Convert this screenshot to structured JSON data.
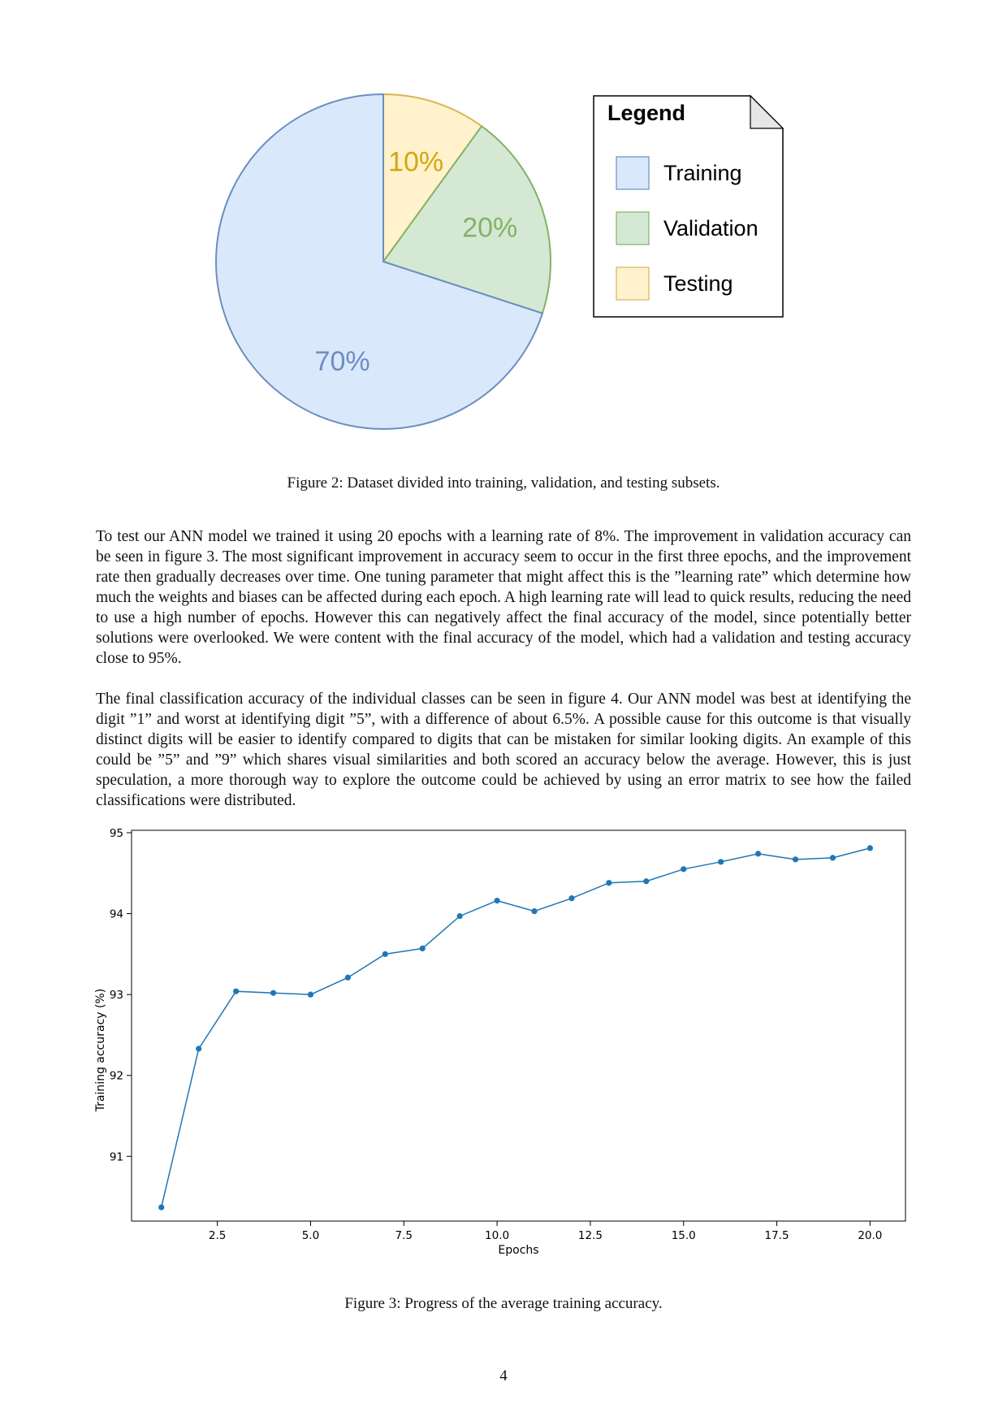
{
  "figure2": {
    "caption": "Figure 2: Dataset divided into training, validation, and testing subsets.",
    "chart_data": {
      "type": "pie",
      "slices": [
        {
          "label": "Training",
          "value": 70,
          "display": "70%",
          "color": "#dae8fc",
          "stroke": "#6c8ebf",
          "text_color": "#6c8ebf"
        },
        {
          "label": "Validation",
          "value": 20,
          "display": "20%",
          "color": "#d5e8d4",
          "stroke": "#82b366",
          "text_color": "#82b366"
        },
        {
          "label": "Testing",
          "value": 10,
          "display": "10%",
          "color": "#fff2cc",
          "stroke": "#d6b656",
          "text_color": "#d6a60c"
        }
      ],
      "legend_title": "Legend",
      "legend_placement": "right"
    }
  },
  "paragraphs": [
    "To test our ANN model we trained it using 20 epochs with a learning rate of 8%. The improvement in validation accuracy can be seen in figure 3. The most significant improvement in accuracy seem to occur in the first three epochs, and the improvement rate then gradually decreases over time. One tuning parameter that might affect this is the ”learning rate” which determine how much the weights and biases can be affected during each epoch. A high learning rate will lead to quick results, reducing the need to use a high number of epochs. However this can negatively affect the final accuracy of the model, since potentially better solutions were overlooked. We were content with the final accuracy of the model, which had a validation and testing accuracy close to 95%.",
    "The final classification accuracy of the individual classes can be seen in figure 4. Our ANN model was best at identifying the digit ”1” and worst at identifying digit ”5”, with a difference of about 6.5%. A possible cause for this outcome is that visually distinct digits will be easier to identify compared to digits that can be mistaken for similar looking digits. An example of this could be ”5” and ”9” which shares visual similarities and both scored an accuracy below the average. However, this is just speculation, a more thorough way to explore the outcome could be achieved by using an error matrix to see how the failed classifications were distributed."
  ],
  "figure3": {
    "caption": "Figure 3: Progress of the average training accuracy.",
    "chart_data": {
      "type": "line",
      "xlabel": "Epochs",
      "ylabel": "Training accuracy (%)",
      "xlim": [
        0.2,
        20.95
      ],
      "ylim": [
        90.2,
        95.03
      ],
      "xticks": [
        "2.5",
        "5.0",
        "7.5",
        "10.0",
        "12.5",
        "15.0",
        "17.5",
        "20.0"
      ],
      "yticks": [
        "91",
        "92",
        "93",
        "94",
        "95"
      ],
      "grid": false,
      "color": "#1f77b4",
      "x": [
        1,
        2,
        3,
        4,
        5,
        6,
        7,
        8,
        9,
        10,
        11,
        12,
        13,
        14,
        15,
        16,
        17,
        18,
        19,
        20
      ],
      "y": [
        90.37,
        92.33,
        93.04,
        93.02,
        93.0,
        93.21,
        93.5,
        93.57,
        93.97,
        94.16,
        94.03,
        94.19,
        94.38,
        94.4,
        94.55,
        94.64,
        94.74,
        94.67,
        94.69,
        94.81
      ]
    }
  },
  "page_number": "4"
}
